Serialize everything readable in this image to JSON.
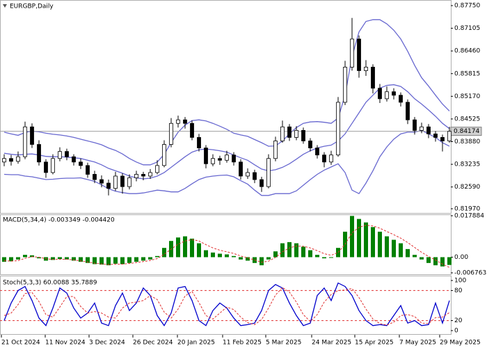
{
  "chart_data": [
    {
      "type": "candlestick",
      "title": "EURGBP,Daily",
      "xlim": [
        -0.6,
        64.2
      ],
      "ylim": [
        0.8187,
        0.8787
      ],
      "yticks": [
        {
          "value": 0.8775,
          "label": "0.87750"
        },
        0.87105,
        {
          "value": 0.8646,
          "label": "0.86460"
        },
        0.85815,
        {
          "value": 0.8517,
          "label": "0.85170"
        },
        0.84525,
        {
          "value": 0.8388,
          "label": "0.83880"
        },
        0.83235,
        {
          "value": 0.8259,
          "label": "0.82590"
        },
        {
          "value": 0.8197,
          "label": "0.81970"
        }
      ],
      "last_price": 0.84174,
      "open": [
        0.833,
        0.834,
        0.8332,
        0.8345,
        0.843,
        0.838,
        0.833,
        0.83,
        0.834,
        0.836,
        0.8345,
        0.833,
        0.832,
        0.8295,
        0.828,
        0.827,
        0.8255,
        0.829,
        0.826,
        0.8285,
        0.8295,
        0.829,
        0.83,
        0.832,
        0.838,
        0.844,
        0.845,
        0.844,
        0.84,
        0.837,
        0.8325,
        0.834,
        0.8335,
        0.835,
        0.833,
        0.829,
        0.83,
        0.828,
        0.826,
        0.834,
        0.839,
        0.843,
        0.84,
        0.842,
        0.839,
        0.837,
        0.835,
        0.833,
        0.835,
        0.85,
        0.86,
        0.868,
        0.859,
        0.86,
        0.854,
        0.851,
        0.853,
        0.852,
        0.85,
        0.845,
        0.842,
        0.843,
        0.841,
        0.84,
        0.839
      ],
      "high": [
        0.8352,
        0.835,
        0.836,
        0.8445,
        0.844,
        0.8392,
        0.8338,
        0.8352,
        0.8372,
        0.8368,
        0.8352,
        0.834,
        0.8328,
        0.8305,
        0.8292,
        0.828,
        0.8302,
        0.8298,
        0.8295,
        0.8305,
        0.8302,
        0.831,
        0.8335,
        0.8392,
        0.8455,
        0.8462,
        0.8458,
        0.8448,
        0.841,
        0.8378,
        0.8352,
        0.8348,
        0.8362,
        0.8358,
        0.8338,
        0.8312,
        0.8308,
        0.8288,
        0.8352,
        0.8402,
        0.8448,
        0.8438,
        0.8432,
        0.8428,
        0.8398,
        0.8378,
        0.8358,
        0.8362,
        0.8515,
        0.8618,
        0.874,
        0.869,
        0.862,
        0.8608,
        0.8552,
        0.8545,
        0.854,
        0.8528,
        0.8508,
        0.8458,
        0.8442,
        0.8438,
        0.8418,
        0.8408,
        0.843
      ],
      "low": [
        0.8318,
        0.832,
        0.8325,
        0.8338,
        0.837,
        0.832,
        0.8285,
        0.8295,
        0.8332,
        0.8335,
        0.832,
        0.831,
        0.8285,
        0.827,
        0.8258,
        0.8235,
        0.8248,
        0.824,
        0.8252,
        0.8275,
        0.8278,
        0.8282,
        0.8295,
        0.8315,
        0.8372,
        0.8428,
        0.8425,
        0.8392,
        0.836,
        0.8312,
        0.8318,
        0.8322,
        0.8328,
        0.832,
        0.828,
        0.8282,
        0.827,
        0.8245,
        0.8255,
        0.8332,
        0.8385,
        0.839,
        0.8392,
        0.8382,
        0.836,
        0.834,
        0.8315,
        0.8322,
        0.8345,
        0.8492,
        0.859,
        0.857,
        0.8575,
        0.8525,
        0.8498,
        0.8502,
        0.8508,
        0.8488,
        0.8438,
        0.8408,
        0.8412,
        0.8398,
        0.8388,
        0.836,
        0.8385
      ],
      "close": [
        0.834,
        0.8332,
        0.8345,
        0.843,
        0.838,
        0.833,
        0.83,
        0.834,
        0.836,
        0.8345,
        0.833,
        0.832,
        0.8295,
        0.828,
        0.827,
        0.8255,
        0.829,
        0.826,
        0.8285,
        0.8295,
        0.829,
        0.83,
        0.832,
        0.838,
        0.844,
        0.845,
        0.844,
        0.84,
        0.837,
        0.8325,
        0.834,
        0.8335,
        0.835,
        0.833,
        0.829,
        0.83,
        0.828,
        0.826,
        0.834,
        0.839,
        0.843,
        0.84,
        0.842,
        0.839,
        0.837,
        0.835,
        0.833,
        0.835,
        0.85,
        0.86,
        0.868,
        0.859,
        0.86,
        0.854,
        0.851,
        0.853,
        0.852,
        0.85,
        0.845,
        0.842,
        0.843,
        0.841,
        0.84,
        0.839,
        0.84174
      ],
      "bands": {
        "color": "#6868d0",
        "upper": [
          0.8415,
          0.841,
          0.8406,
          0.8414,
          0.8418,
          0.8416,
          0.8412,
          0.8409,
          0.8407,
          0.8404,
          0.84,
          0.8395,
          0.839,
          0.8385,
          0.8379,
          0.837,
          0.8363,
          0.8353,
          0.834,
          0.833,
          0.8322,
          0.8322,
          0.833,
          0.8352,
          0.8385,
          0.8415,
          0.8435,
          0.8448,
          0.845,
          0.8447,
          0.844,
          0.8432,
          0.8423,
          0.8412,
          0.8407,
          0.8403,
          0.8394,
          0.8385,
          0.8375,
          0.8376,
          0.839,
          0.841,
          0.8428,
          0.844,
          0.8444,
          0.8445,
          0.8443,
          0.844,
          0.8455,
          0.852,
          0.863,
          0.87,
          0.873,
          0.8735,
          0.8735,
          0.8723,
          0.8705,
          0.868,
          0.8645,
          0.8605,
          0.857,
          0.8546,
          0.852,
          0.8495,
          0.8475
        ],
        "middle": [
          0.8355,
          0.8352,
          0.835,
          0.8352,
          0.8353,
          0.835,
          0.8346,
          0.8345,
          0.8345,
          0.8344,
          0.8342,
          0.834,
          0.8335,
          0.833,
          0.8322,
          0.8312,
          0.8305,
          0.8298,
          0.829,
          0.8285,
          0.8282,
          0.8284,
          0.829,
          0.83,
          0.8315,
          0.833,
          0.8345,
          0.8358,
          0.8365,
          0.8367,
          0.8365,
          0.8362,
          0.8358,
          0.835,
          0.8342,
          0.8335,
          0.8322,
          0.831,
          0.8305,
          0.8308,
          0.8315,
          0.8325,
          0.8338,
          0.8352,
          0.8362,
          0.837,
          0.8375,
          0.8378,
          0.839,
          0.841,
          0.844,
          0.847,
          0.85,
          0.852,
          0.854,
          0.8548,
          0.855,
          0.8545,
          0.853,
          0.851,
          0.8495,
          0.8478,
          0.846,
          0.844,
          0.8425
        ],
        "lower": [
          0.8295,
          0.8294,
          0.8294,
          0.829,
          0.8288,
          0.8284,
          0.828,
          0.8281,
          0.8283,
          0.8284,
          0.8284,
          0.8285,
          0.828,
          0.8275,
          0.8265,
          0.8254,
          0.8247,
          0.8243,
          0.824,
          0.824,
          0.8242,
          0.8246,
          0.825,
          0.8248,
          0.8245,
          0.8245,
          0.8255,
          0.8268,
          0.828,
          0.8287,
          0.829,
          0.8292,
          0.8293,
          0.8288,
          0.8277,
          0.8267,
          0.825,
          0.8235,
          0.8235,
          0.824,
          0.824,
          0.824,
          0.8248,
          0.8264,
          0.828,
          0.8295,
          0.8307,
          0.8316,
          0.8325,
          0.83,
          0.825,
          0.824,
          0.827,
          0.8305,
          0.8345,
          0.8373,
          0.8395,
          0.841,
          0.8415,
          0.8415,
          0.842,
          0.841,
          0.84,
          0.8385,
          0.8375
        ]
      }
    },
    {
      "type": "macd",
      "title": "MACD(5,34,4) -0.003349 -0.004420",
      "ylim": [
        -0.006763,
        0.017884
      ],
      "yticks": [
        0.017884,
        {
          "value": 0,
          "label": "0.00"
        },
        -0.006763
      ],
      "color": "#008000",
      "signal_color": "#e03030",
      "values": [
        -0.002,
        -0.0018,
        -0.001,
        0.001,
        0.0008,
        -0.0005,
        -0.0015,
        -0.0012,
        -0.0008,
        -0.001,
        -0.0015,
        -0.002,
        -0.0025,
        -0.003,
        -0.0032,
        -0.0035,
        -0.0028,
        -0.003,
        -0.0025,
        -0.002,
        -0.0015,
        -0.001,
        0.0005,
        0.004,
        0.007,
        0.0085,
        0.009,
        0.008,
        0.006,
        0.003,
        0.002,
        0.0015,
        0.0012,
        0.0005,
        -0.001,
        -0.0015,
        -0.0025,
        -0.0035,
        -0.001,
        0.0025,
        0.006,
        0.0065,
        0.006,
        0.0045,
        0.003,
        0.001,
        -0.0005,
        -0.0003,
        0.004,
        0.011,
        0.0178,
        0.0165,
        0.015,
        0.013,
        0.011,
        0.009,
        0.0075,
        0.006,
        0.0035,
        0.001,
        -0.001,
        -0.0025,
        -0.0035,
        -0.004,
        -0.003349
      ],
      "signal": [
        -0.0015,
        -0.0017,
        -0.0015,
        -0.0005,
        0.0002,
        0,
        -0.0007,
        -0.001,
        -0.0009,
        -0.0009,
        -0.0012,
        -0.0016,
        -0.0021,
        -0.0026,
        -0.0029,
        -0.0032,
        -0.003,
        -0.003,
        -0.0027,
        -0.0023,
        -0.0019,
        -0.0014,
        -0.0006,
        0.0012,
        0.0035,
        0.0056,
        0.007,
        0.0076,
        0.007,
        0.0054,
        0.004,
        0.003,
        0.0023,
        0.0016,
        0.0005,
        -0.0003,
        -0.0012,
        -0.0022,
        -0.0017,
        -0.0001,
        0.0023,
        0.004,
        0.0048,
        0.0047,
        0.004,
        0.0028,
        0.0015,
        0.0008,
        0.002,
        0.0056,
        0.0105,
        0.0129,
        0.0138,
        0.0135,
        0.0125,
        0.0111,
        0.0097,
        0.0082,
        0.0063,
        0.0042,
        0.0021,
        0.0003,
        -0.0012,
        -0.003,
        -0.00442
      ]
    },
    {
      "type": "stoch",
      "title": "Stoch(5,3,3) 60.0088 35.7889",
      "ylim": [
        0,
        100
      ],
      "yticks": [
        100,
        80,
        20,
        0
      ],
      "levels": [
        80,
        20
      ],
      "k_color": "#0000cc",
      "d_color": "#e03030",
      "k": [
        20,
        55,
        80,
        88,
        60,
        25,
        10,
        45,
        85,
        75,
        45,
        25,
        35,
        55,
        15,
        10,
        50,
        75,
        40,
        55,
        85,
        70,
        30,
        10,
        35,
        85,
        88,
        60,
        20,
        10,
        40,
        55,
        45,
        25,
        10,
        12,
        15,
        40,
        80,
        92,
        85,
        55,
        30,
        10,
        15,
        70,
        85,
        60,
        95,
        88,
        70,
        40,
        20,
        10,
        12,
        10,
        30,
        50,
        15,
        20,
        10,
        12,
        55,
        15,
        60.0088
      ],
      "d": [
        30,
        35,
        52,
        74,
        76,
        58,
        32,
        27,
        47,
        68,
        68,
        48,
        35,
        38,
        35,
        27,
        25,
        45,
        55,
        57,
        60,
        70,
        62,
        37,
        25,
        43,
        69,
        78,
        56,
        30,
        23,
        35,
        47,
        42,
        27,
        16,
        12,
        22,
        45,
        71,
        86,
        77,
        57,
        32,
        18,
        32,
        57,
        72,
        80,
        81,
        84,
        66,
        43,
        23,
        14,
        11,
        17,
        30,
        32,
        28,
        15,
        14,
        26,
        27,
        35.7889
      ],
      "xticks": [
        {
          "value": -0.4,
          "label": "21 Oct 2024"
        },
        {
          "value": 5.9,
          "label": "11 Nov 2024"
        },
        {
          "value": 12.2,
          "label": "3 Dec 2024"
        },
        {
          "value": 18.5,
          "label": "26 Dec 2024"
        },
        {
          "value": 24.9,
          "label": "20 Jan 2025"
        },
        {
          "value": 31.4,
          "label": "11 Feb 2025"
        },
        {
          "value": 37.6,
          "label": "5 Mar 2025"
        },
        {
          "value": 44.2,
          "label": "24 Mar 2025"
        },
        {
          "value": 50.4,
          "label": "15 Apr 2025"
        },
        {
          "value": 56.8,
          "label": "7 May 2025"
        },
        {
          "value": 62.6,
          "label": "29 May 2025"
        }
      ]
    }
  ]
}
